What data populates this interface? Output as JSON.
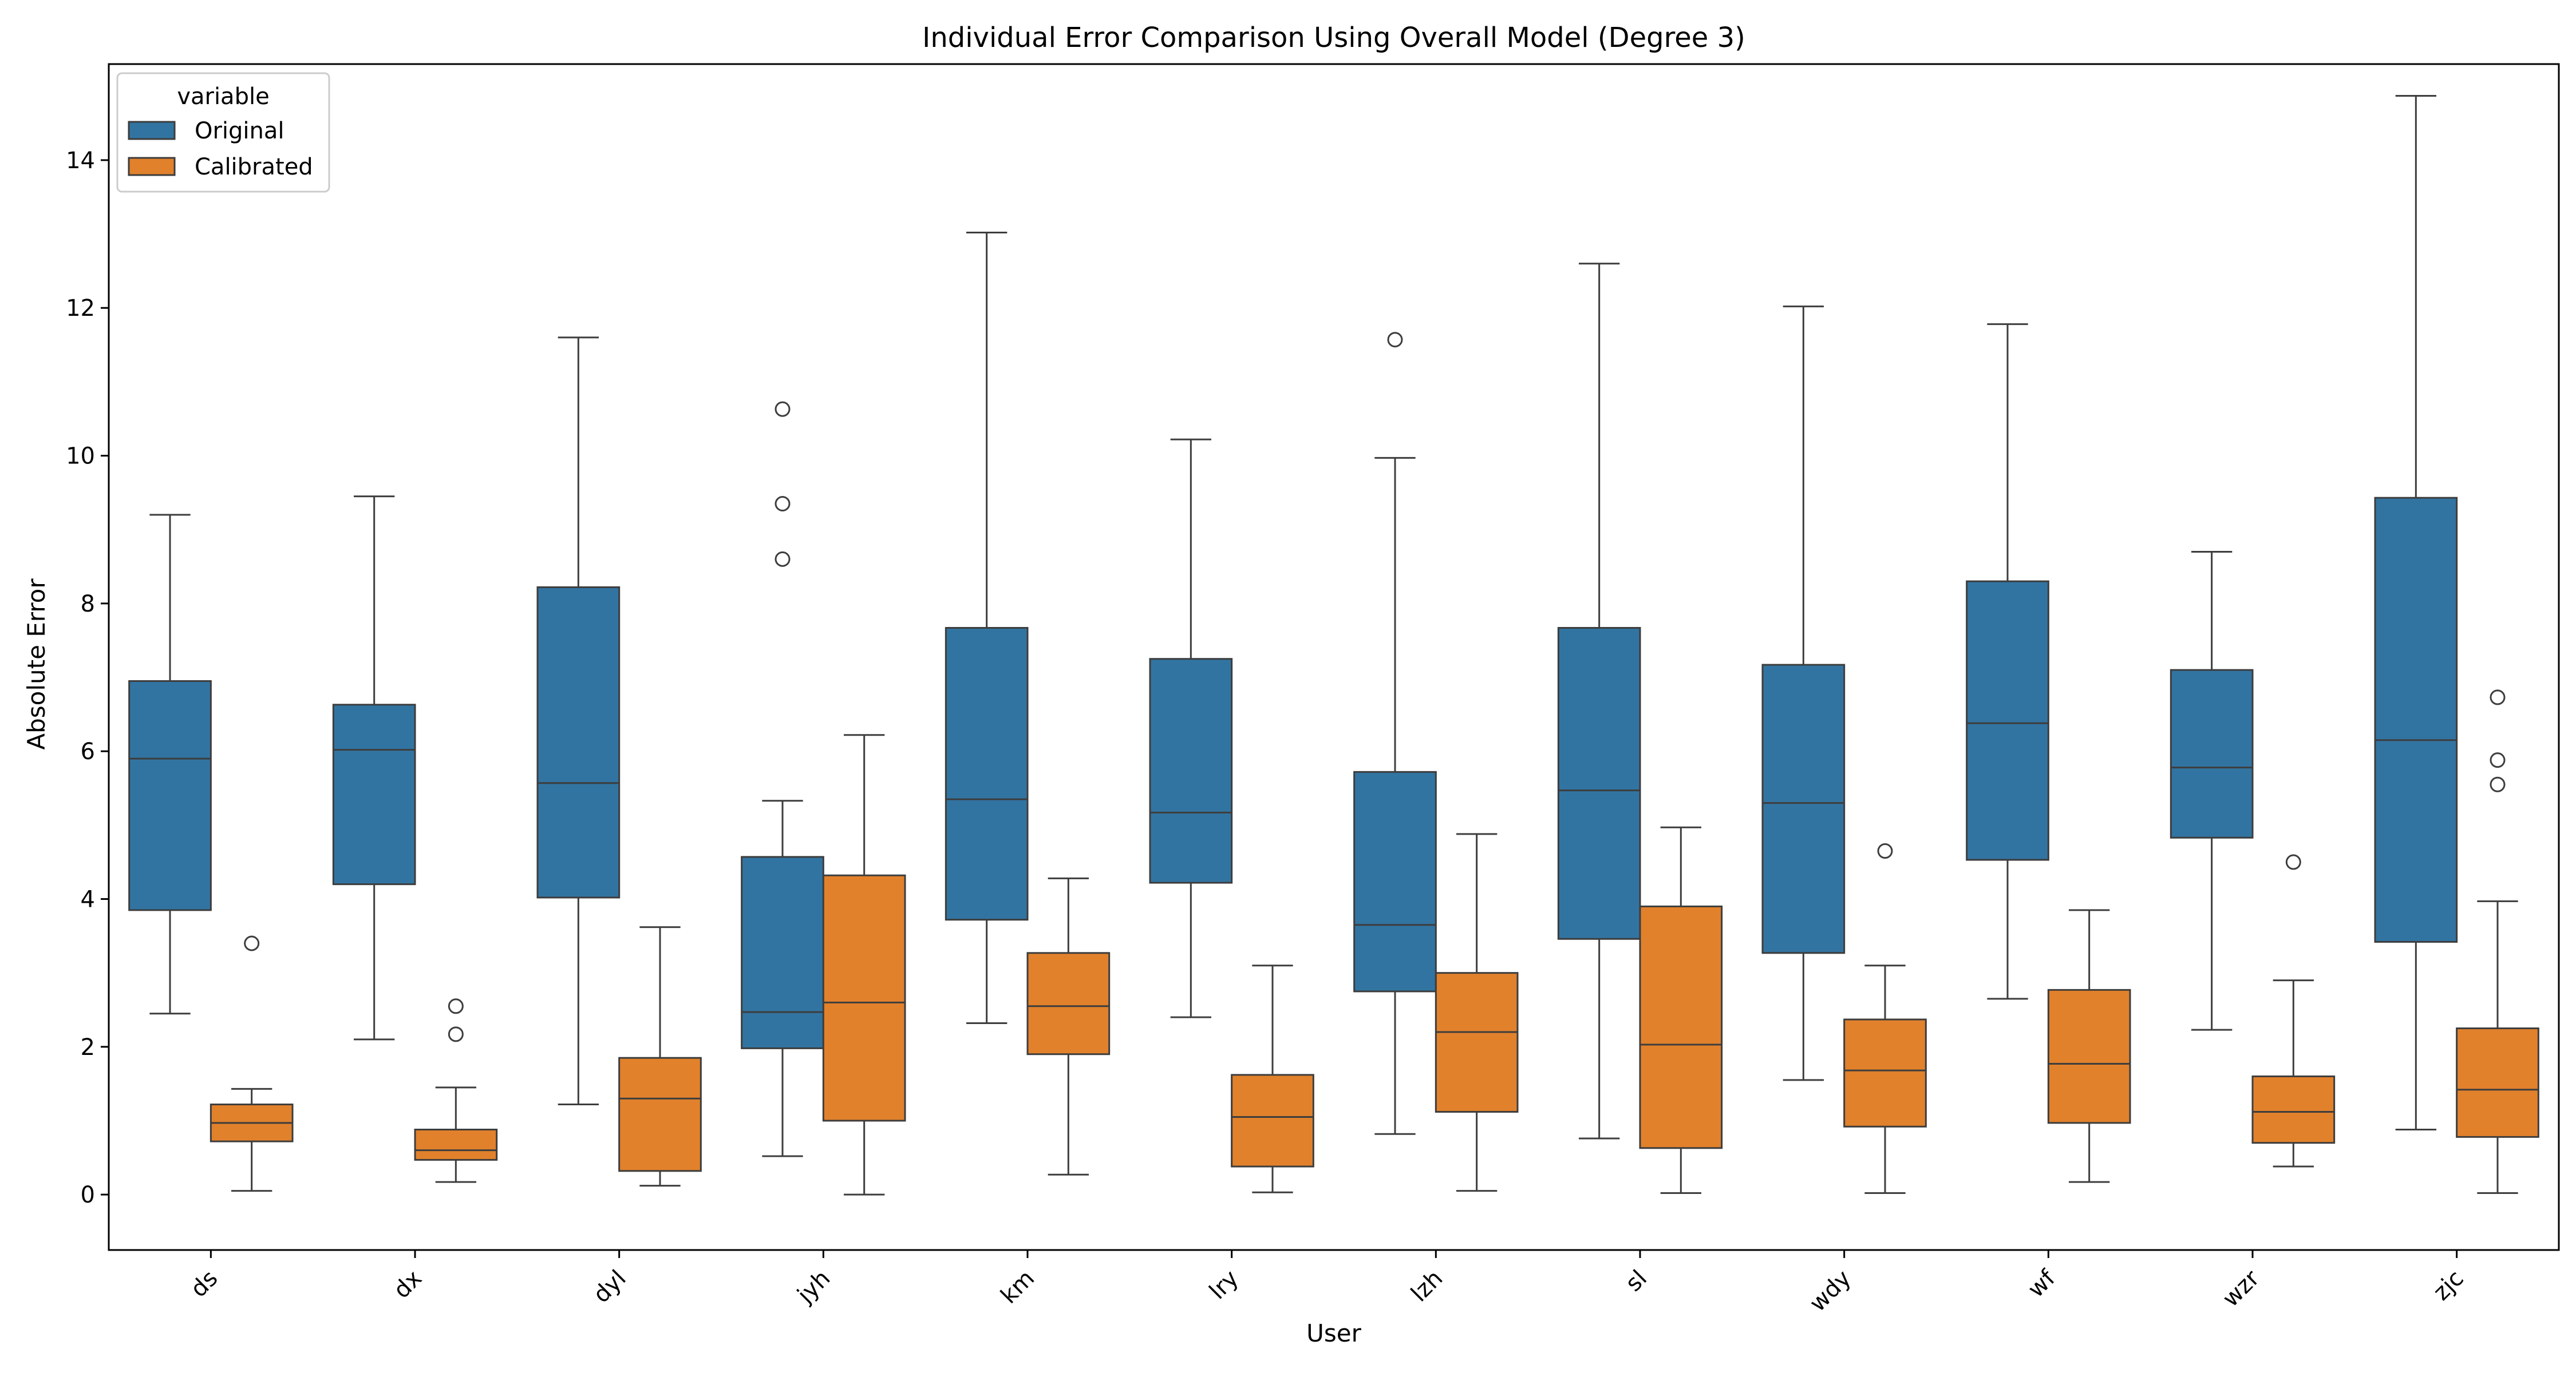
{
  "chart_data": {
    "type": "box",
    "title": "Individual Error Comparison Using Overall Model (Degree 3)",
    "xlabel": "User",
    "ylabel": "Absolute Error",
    "ylim": [
      -0.75,
      15.3
    ],
    "yticks": [
      0,
      2,
      4,
      6,
      8,
      10,
      12,
      14
    ],
    "grid": false,
    "legend": {
      "title": "variable",
      "placement": "top-left",
      "entries": [
        "Original",
        "Calibrated"
      ]
    },
    "categories": [
      "ds",
      "dx",
      "dyl",
      "jyh",
      "km",
      "lry",
      "lzh",
      "sl",
      "wdy",
      "wf",
      "wzr",
      "zjc"
    ],
    "colors": {
      "Original": "#3274a1",
      "Calibrated": "#e1812c"
    },
    "series": [
      {
        "name": "Original",
        "boxes": [
          {
            "whisker_low": 2.45,
            "q1": 3.85,
            "median": 5.9,
            "q3": 6.95,
            "whisker_high": 9.2,
            "outliers": []
          },
          {
            "whisker_low": 2.1,
            "q1": 4.2,
            "median": 6.02,
            "q3": 6.63,
            "whisker_high": 9.45,
            "outliers": []
          },
          {
            "whisker_low": 1.22,
            "q1": 4.02,
            "median": 5.57,
            "q3": 8.22,
            "whisker_high": 11.6,
            "outliers": []
          },
          {
            "whisker_low": 0.52,
            "q1": 1.98,
            "median": 2.47,
            "q3": 4.57,
            "whisker_high": 5.33,
            "outliers": [
              8.6,
              9.35,
              10.63
            ]
          },
          {
            "whisker_low": 2.32,
            "q1": 3.72,
            "median": 5.35,
            "q3": 7.67,
            "whisker_high": 13.02,
            "outliers": []
          },
          {
            "whisker_low": 2.4,
            "q1": 4.22,
            "median": 5.17,
            "q3": 7.25,
            "whisker_high": 10.22,
            "outliers": []
          },
          {
            "whisker_low": 0.82,
            "q1": 2.75,
            "median": 3.65,
            "q3": 5.72,
            "whisker_high": 9.97,
            "outliers": [
              11.57
            ]
          },
          {
            "whisker_low": 0.76,
            "q1": 3.46,
            "median": 5.47,
            "q3": 7.67,
            "whisker_high": 12.6,
            "outliers": []
          },
          {
            "whisker_low": 1.55,
            "q1": 3.27,
            "median": 5.3,
            "q3": 7.17,
            "whisker_high": 12.02,
            "outliers": []
          },
          {
            "whisker_low": 2.65,
            "q1": 4.53,
            "median": 6.38,
            "q3": 8.3,
            "whisker_high": 11.78,
            "outliers": []
          },
          {
            "whisker_low": 2.23,
            "q1": 4.83,
            "median": 5.78,
            "q3": 7.1,
            "whisker_high": 8.7,
            "outliers": []
          },
          {
            "whisker_low": 0.88,
            "q1": 3.42,
            "median": 6.15,
            "q3": 9.43,
            "whisker_high": 14.87,
            "outliers": []
          }
        ]
      },
      {
        "name": "Calibrated",
        "boxes": [
          {
            "whisker_low": 0.05,
            "q1": 0.72,
            "median": 0.97,
            "q3": 1.22,
            "whisker_high": 1.43,
            "outliers": [
              3.4
            ]
          },
          {
            "whisker_low": 0.17,
            "q1": 0.47,
            "median": 0.6,
            "q3": 0.88,
            "whisker_high": 1.45,
            "outliers": [
              2.17,
              2.55
            ]
          },
          {
            "whisker_low": 0.12,
            "q1": 0.32,
            "median": 1.3,
            "q3": 1.85,
            "whisker_high": 3.62,
            "outliers": []
          },
          {
            "whisker_low": 0.0,
            "q1": 1.0,
            "median": 2.6,
            "q3": 4.32,
            "whisker_high": 6.22,
            "outliers": []
          },
          {
            "whisker_low": 0.27,
            "q1": 1.9,
            "median": 2.55,
            "q3": 3.27,
            "whisker_high": 4.28,
            "outliers": []
          },
          {
            "whisker_low": 0.03,
            "q1": 0.38,
            "median": 1.05,
            "q3": 1.62,
            "whisker_high": 3.1,
            "outliers": []
          },
          {
            "whisker_low": 0.05,
            "q1": 1.12,
            "median": 2.2,
            "q3": 3.0,
            "whisker_high": 4.88,
            "outliers": []
          },
          {
            "whisker_low": 0.02,
            "q1": 0.63,
            "median": 2.03,
            "q3": 3.9,
            "whisker_high": 4.97,
            "outliers": []
          },
          {
            "whisker_low": 0.02,
            "q1": 0.92,
            "median": 1.68,
            "q3": 2.37,
            "whisker_high": 3.1,
            "outliers": [
              4.65
            ]
          },
          {
            "whisker_low": 0.17,
            "q1": 0.97,
            "median": 1.77,
            "q3": 2.77,
            "whisker_high": 3.85,
            "outliers": []
          },
          {
            "whisker_low": 0.38,
            "q1": 0.7,
            "median": 1.12,
            "q3": 1.6,
            "whisker_high": 2.9,
            "outliers": [
              4.5
            ]
          },
          {
            "whisker_low": 0.02,
            "q1": 0.78,
            "median": 1.42,
            "q3": 2.25,
            "whisker_high": 3.97,
            "outliers": [
              5.55,
              5.88,
              6.73
            ]
          }
        ]
      }
    ]
  }
}
